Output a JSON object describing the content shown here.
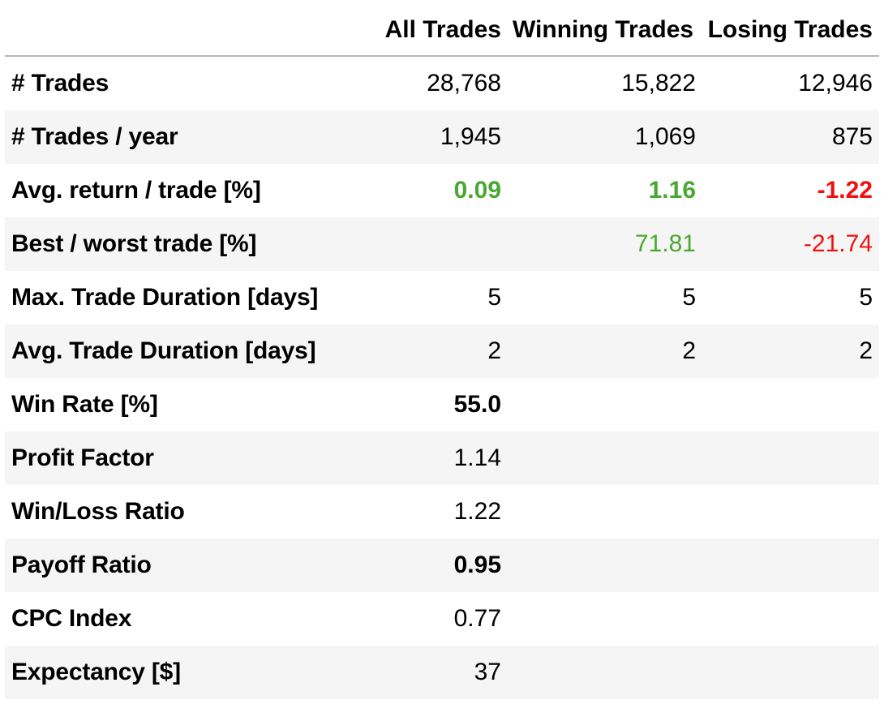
{
  "columns": {
    "all": "All Trades",
    "win": "Winning Trades",
    "lose": "Losing Trades"
  },
  "colors": {
    "positive": "#4aa832",
    "negative": "#ee1111",
    "row_shade": "#f5f5f5"
  },
  "rows": [
    {
      "label": "# Trades",
      "all": "28,768",
      "win": "15,822",
      "lose": "12,946"
    },
    {
      "label": "# Trades / year",
      "all": "1,945",
      "win": "1,069",
      "lose": "875"
    },
    {
      "label": "Avg. return / trade [%]",
      "all": "0.09",
      "win": "1.16",
      "lose": "-1.22"
    },
    {
      "label": "Best / worst trade [%]",
      "all": "",
      "win": "71.81",
      "lose": "-21.74"
    },
    {
      "label": "Max. Trade Duration [days]",
      "all": "5",
      "win": "5",
      "lose": "5"
    },
    {
      "label": "Avg. Trade Duration [days]",
      "all": "2",
      "win": "2",
      "lose": "2"
    },
    {
      "label": "Win Rate [%]",
      "all": "55.0",
      "win": "",
      "lose": ""
    },
    {
      "label": "Profit Factor",
      "all": "1.14",
      "win": "",
      "lose": ""
    },
    {
      "label": "Win/Loss Ratio",
      "all": "1.22",
      "win": "",
      "lose": ""
    },
    {
      "label": "Payoff Ratio",
      "all": "0.95",
      "win": "",
      "lose": ""
    },
    {
      "label": "CPC Index",
      "all": "0.77",
      "win": "",
      "lose": ""
    },
    {
      "label": "Expectancy [$]",
      "all": "37",
      "win": "",
      "lose": ""
    }
  ]
}
